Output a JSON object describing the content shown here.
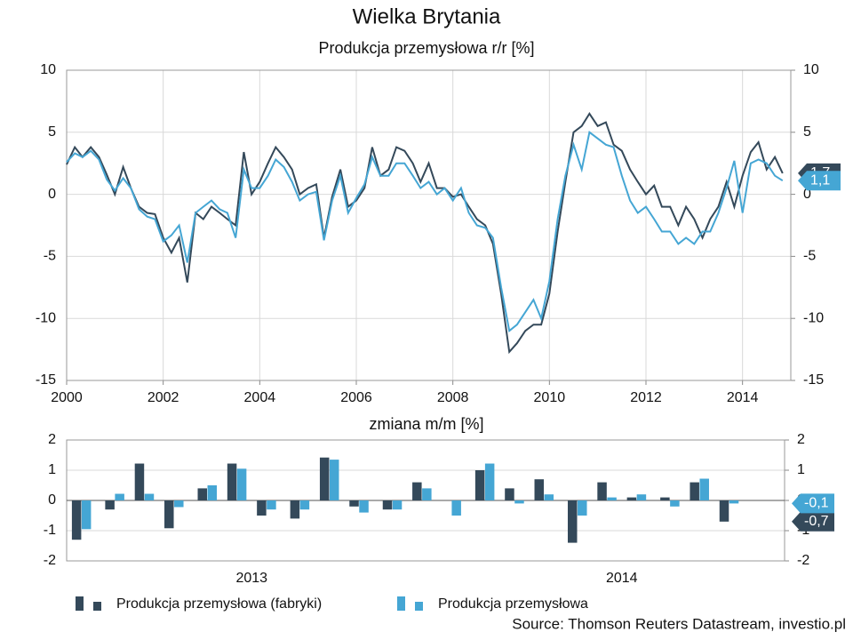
{
  "title": "Wielka Brytania",
  "source": "Source: Thomson Reuters Datastream, investio.pl",
  "chart_data": [
    {
      "type": "line",
      "title": "Produkcja przemysłowa r/r [%]",
      "x": [
        2000,
        2000.17,
        2000.33,
        2000.5,
        2000.67,
        2000.83,
        2001,
        2001.17,
        2001.33,
        2001.5,
        2001.67,
        2001.83,
        2002,
        2002.17,
        2002.33,
        2002.5,
        2002.67,
        2002.83,
        2003,
        2003.17,
        2003.33,
        2003.5,
        2003.67,
        2003.83,
        2004,
        2004.17,
        2004.33,
        2004.5,
        2004.67,
        2004.83,
        2005,
        2005.17,
        2005.33,
        2005.5,
        2005.67,
        2005.83,
        2006,
        2006.17,
        2006.33,
        2006.5,
        2006.67,
        2006.83,
        2007,
        2007.17,
        2007.33,
        2007.5,
        2007.67,
        2007.83,
        2008,
        2008.17,
        2008.33,
        2008.5,
        2008.67,
        2008.83,
        2009,
        2009.17,
        2009.33,
        2009.5,
        2009.67,
        2009.83,
        2010,
        2010.17,
        2010.33,
        2010.5,
        2010.67,
        2010.83,
        2011,
        2011.17,
        2011.33,
        2011.5,
        2011.67,
        2011.83,
        2012,
        2012.17,
        2012.33,
        2012.5,
        2012.67,
        2012.83,
        2013,
        2013.17,
        2013.33,
        2013.5,
        2013.67,
        2013.83,
        2014,
        2014.17,
        2014.33,
        2014.5,
        2014.67,
        2014.83
      ],
      "series": [
        {
          "name": "Produkcja przemysłowa (fabryki)",
          "color": "#34495a",
          "values": [
            2.4,
            3.8,
            3.0,
            3.8,
            3.0,
            1.6,
            0.0,
            2.2,
            0.5,
            -1.0,
            -1.5,
            -1.6,
            -3.5,
            -4.7,
            -3.5,
            -7.1,
            -1.5,
            -2.0,
            -1.0,
            -1.5,
            -2.0,
            -2.5,
            3.4,
            0.0,
            1.0,
            2.5,
            3.8,
            3.0,
            2.0,
            0.0,
            0.5,
            0.8,
            -3.5,
            -0.2,
            2.0,
            -1.0,
            -0.5,
            0.5,
            3.8,
            1.5,
            2.0,
            3.8,
            3.5,
            2.5,
            1.0,
            2.5,
            0.5,
            0.5,
            -0.2,
            0.0,
            -1.0,
            -2.0,
            -2.5,
            -4.0,
            -8.0,
            -12.7,
            -12.0,
            -11.0,
            -10.5,
            -10.5,
            -8.0,
            -3.0,
            1.0,
            5.0,
            5.5,
            6.5,
            5.5,
            5.8,
            4.0,
            3.5,
            2.0,
            1.0,
            0.0,
            0.7,
            -1.0,
            -1.0,
            -2.5,
            -1.0,
            -2.0,
            -3.5,
            -2.0,
            -1.0,
            1.0,
            -1.0,
            1.5,
            3.4,
            4.2,
            2.0,
            3.0,
            1.7
          ],
          "value_labels": [
            null,
            null,
            null,
            null,
            null,
            null,
            null,
            null,
            null,
            null,
            null,
            null,
            null,
            null,
            null,
            null,
            null,
            null,
            null,
            null,
            null,
            null,
            null,
            null,
            null,
            null,
            null,
            null,
            null,
            null,
            null,
            null,
            null,
            null,
            null,
            null,
            null,
            null,
            null,
            null,
            null,
            null,
            null,
            null,
            null,
            null,
            null,
            null,
            null,
            null,
            null,
            null,
            null,
            null,
            null,
            null,
            null,
            null,
            null,
            null,
            null,
            null,
            null,
            null,
            null,
            null,
            null,
            null,
            null,
            null,
            null,
            null,
            null,
            null,
            null,
            null,
            null,
            null,
            null,
            null,
            null,
            null,
            null,
            null,
            null,
            null,
            null,
            null,
            null,
            "1,7"
          ]
        },
        {
          "name": "Produkcja przemysłowa",
          "color": "#45a6d4",
          "values": [
            2.6,
            3.3,
            3.0,
            3.5,
            2.8,
            1.2,
            0.3,
            1.3,
            0.5,
            -1.2,
            -1.8,
            -2.0,
            -3.8,
            -3.3,
            -2.5,
            -5.5,
            -1.5,
            -1.0,
            -0.5,
            -1.2,
            -1.5,
            -3.5,
            2.0,
            0.5,
            0.5,
            1.5,
            2.8,
            2.2,
            1.0,
            -0.5,
            0.0,
            0.2,
            -3.7,
            -0.5,
            1.5,
            -1.5,
            -0.3,
            0.8,
            3.0,
            1.5,
            1.5,
            2.5,
            2.5,
            1.5,
            0.5,
            1.0,
            0.0,
            0.5,
            -0.5,
            0.5,
            -1.5,
            -2.5,
            -2.7,
            -3.5,
            -7.5,
            -11.0,
            -10.5,
            -9.5,
            -8.5,
            -10.0,
            -7.0,
            -2.0,
            1.5,
            4.0,
            2.0,
            5.0,
            4.5,
            4.0,
            3.8,
            1.5,
            -0.5,
            -1.5,
            -1.0,
            -2.0,
            -3.0,
            -3.0,
            -4.0,
            -3.5,
            -4.0,
            -3.0,
            -3.0,
            -1.5,
            0.5,
            2.7,
            -1.5,
            2.5,
            2.8,
            2.5,
            1.5,
            1.1
          ],
          "value_labels": [
            null,
            null,
            null,
            null,
            null,
            null,
            null,
            null,
            null,
            null,
            null,
            null,
            null,
            null,
            null,
            null,
            null,
            null,
            null,
            null,
            null,
            null,
            null,
            null,
            null,
            null,
            null,
            null,
            null,
            null,
            null,
            null,
            null,
            null,
            null,
            null,
            null,
            null,
            null,
            null,
            null,
            null,
            null,
            null,
            null,
            null,
            null,
            null,
            null,
            null,
            null,
            null,
            null,
            null,
            null,
            null,
            null,
            null,
            null,
            null,
            null,
            null,
            null,
            null,
            null,
            null,
            null,
            null,
            null,
            null,
            null,
            null,
            null,
            null,
            null,
            null,
            null,
            null,
            null,
            null,
            null,
            null,
            null,
            null,
            null,
            null,
            null,
            null,
            null,
            "1,1"
          ]
        }
      ],
      "xlim": [
        2000,
        2015
      ],
      "xticks": [
        2000,
        2002,
        2004,
        2006,
        2008,
        2010,
        2012,
        2014
      ],
      "ylim": [
        -15,
        10
      ],
      "yticks": [
        -15,
        -10,
        -5,
        0,
        5,
        10
      ],
      "y2lim": [
        -15,
        10
      ],
      "y2ticks": [
        -15,
        -10,
        -5,
        0,
        5,
        10
      ],
      "grid": true
    },
    {
      "type": "bar",
      "title": "zmiana m/m [%]",
      "x": [
        2013.04,
        2013.13,
        2013.21,
        2013.29,
        2013.38,
        2013.46,
        2013.54,
        2013.63,
        2013.71,
        2013.79,
        2013.88,
        2013.96,
        2014.04,
        2014.13,
        2014.21,
        2014.29,
        2014.38,
        2014.46,
        2014.54,
        2014.63,
        2014.71,
        2014.79
      ],
      "series": [
        {
          "name": "Produkcja przemysłowa (fabryki)",
          "color": "#34495a",
          "values": [
            -1.3,
            -0.3,
            1.22,
            -0.92,
            0.4,
            1.22,
            -0.5,
            -0.6,
            1.42,
            -0.2,
            -0.3,
            0.6,
            0,
            1.0,
            0.4,
            0.7,
            -1.4,
            0.6,
            0.1,
            0.1,
            0.6,
            -0.7
          ],
          "value_labels": [
            null,
            null,
            null,
            null,
            null,
            null,
            null,
            null,
            null,
            null,
            null,
            null,
            null,
            null,
            null,
            null,
            null,
            null,
            null,
            null,
            null,
            "-0,7"
          ]
        },
        {
          "name": "Produkcja przemysłowa",
          "color": "#45a6d4",
          "values": [
            -0.95,
            0.22,
            0.22,
            -0.22,
            0.5,
            1.05,
            -0.3,
            -0.3,
            1.35,
            -0.4,
            -0.3,
            0.4,
            -0.5,
            1.22,
            -0.1,
            0.2,
            -0.5,
            0.1,
            0.2,
            -0.2,
            0.72,
            -0.1
          ],
          "value_labels": [
            null,
            null,
            null,
            null,
            null,
            null,
            null,
            null,
            null,
            null,
            null,
            null,
            null,
            null,
            null,
            null,
            null,
            null,
            null,
            null,
            null,
            "-0,1"
          ]
        }
      ],
      "xlim": [
        2013,
        2014.94
      ],
      "xticks": [
        {
          "value": 2013.5,
          "label": "2013"
        },
        {
          "value": 2014.5,
          "label": "2014"
        }
      ],
      "ylim": [
        -2,
        2
      ],
      "yticks": [
        -2,
        -1,
        0,
        1,
        2
      ],
      "y2lim": [
        -2,
        2
      ],
      "y2ticks": [
        -2,
        -1,
        0,
        1,
        2
      ],
      "grid": true
    }
  ]
}
